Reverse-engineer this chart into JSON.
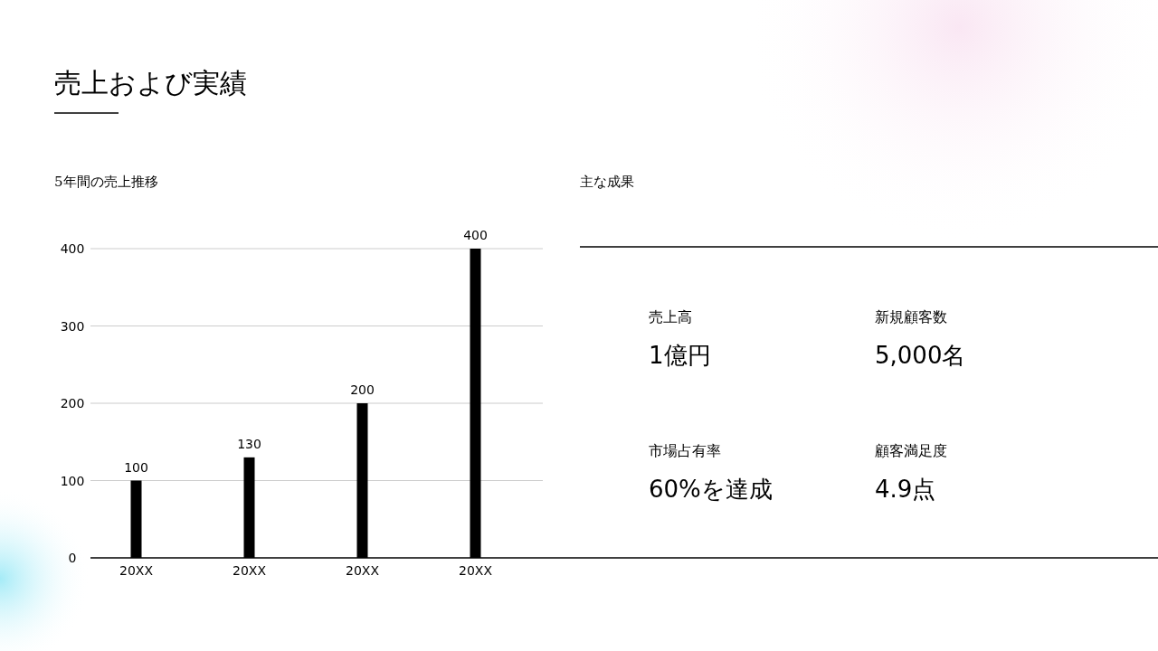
{
  "chart_data": [
    {
      "type": "bar",
      "title": "売上および実績",
      "subtitle": "5年間の売上推移",
      "categories": [
        "20XX",
        "20XX",
        "20XX",
        "20XX"
      ],
      "values": [
        100,
        130,
        200,
        400
      ],
      "color": "#000000",
      "ylim": [
        0,
        400
      ],
      "yticks": [
        0,
        100,
        200,
        300,
        400
      ],
      "grid": "y",
      "data_labels": true
    },
    {
      "type": "other",
      "title": "主な成果",
      "annotations": [
        "売上高",
        "1億円",
        "新規顧客数",
        "5,000名",
        "市場占有率",
        "60%を達成",
        "顧客満足度",
        "4.9点"
      ]
    }
  ]
}
